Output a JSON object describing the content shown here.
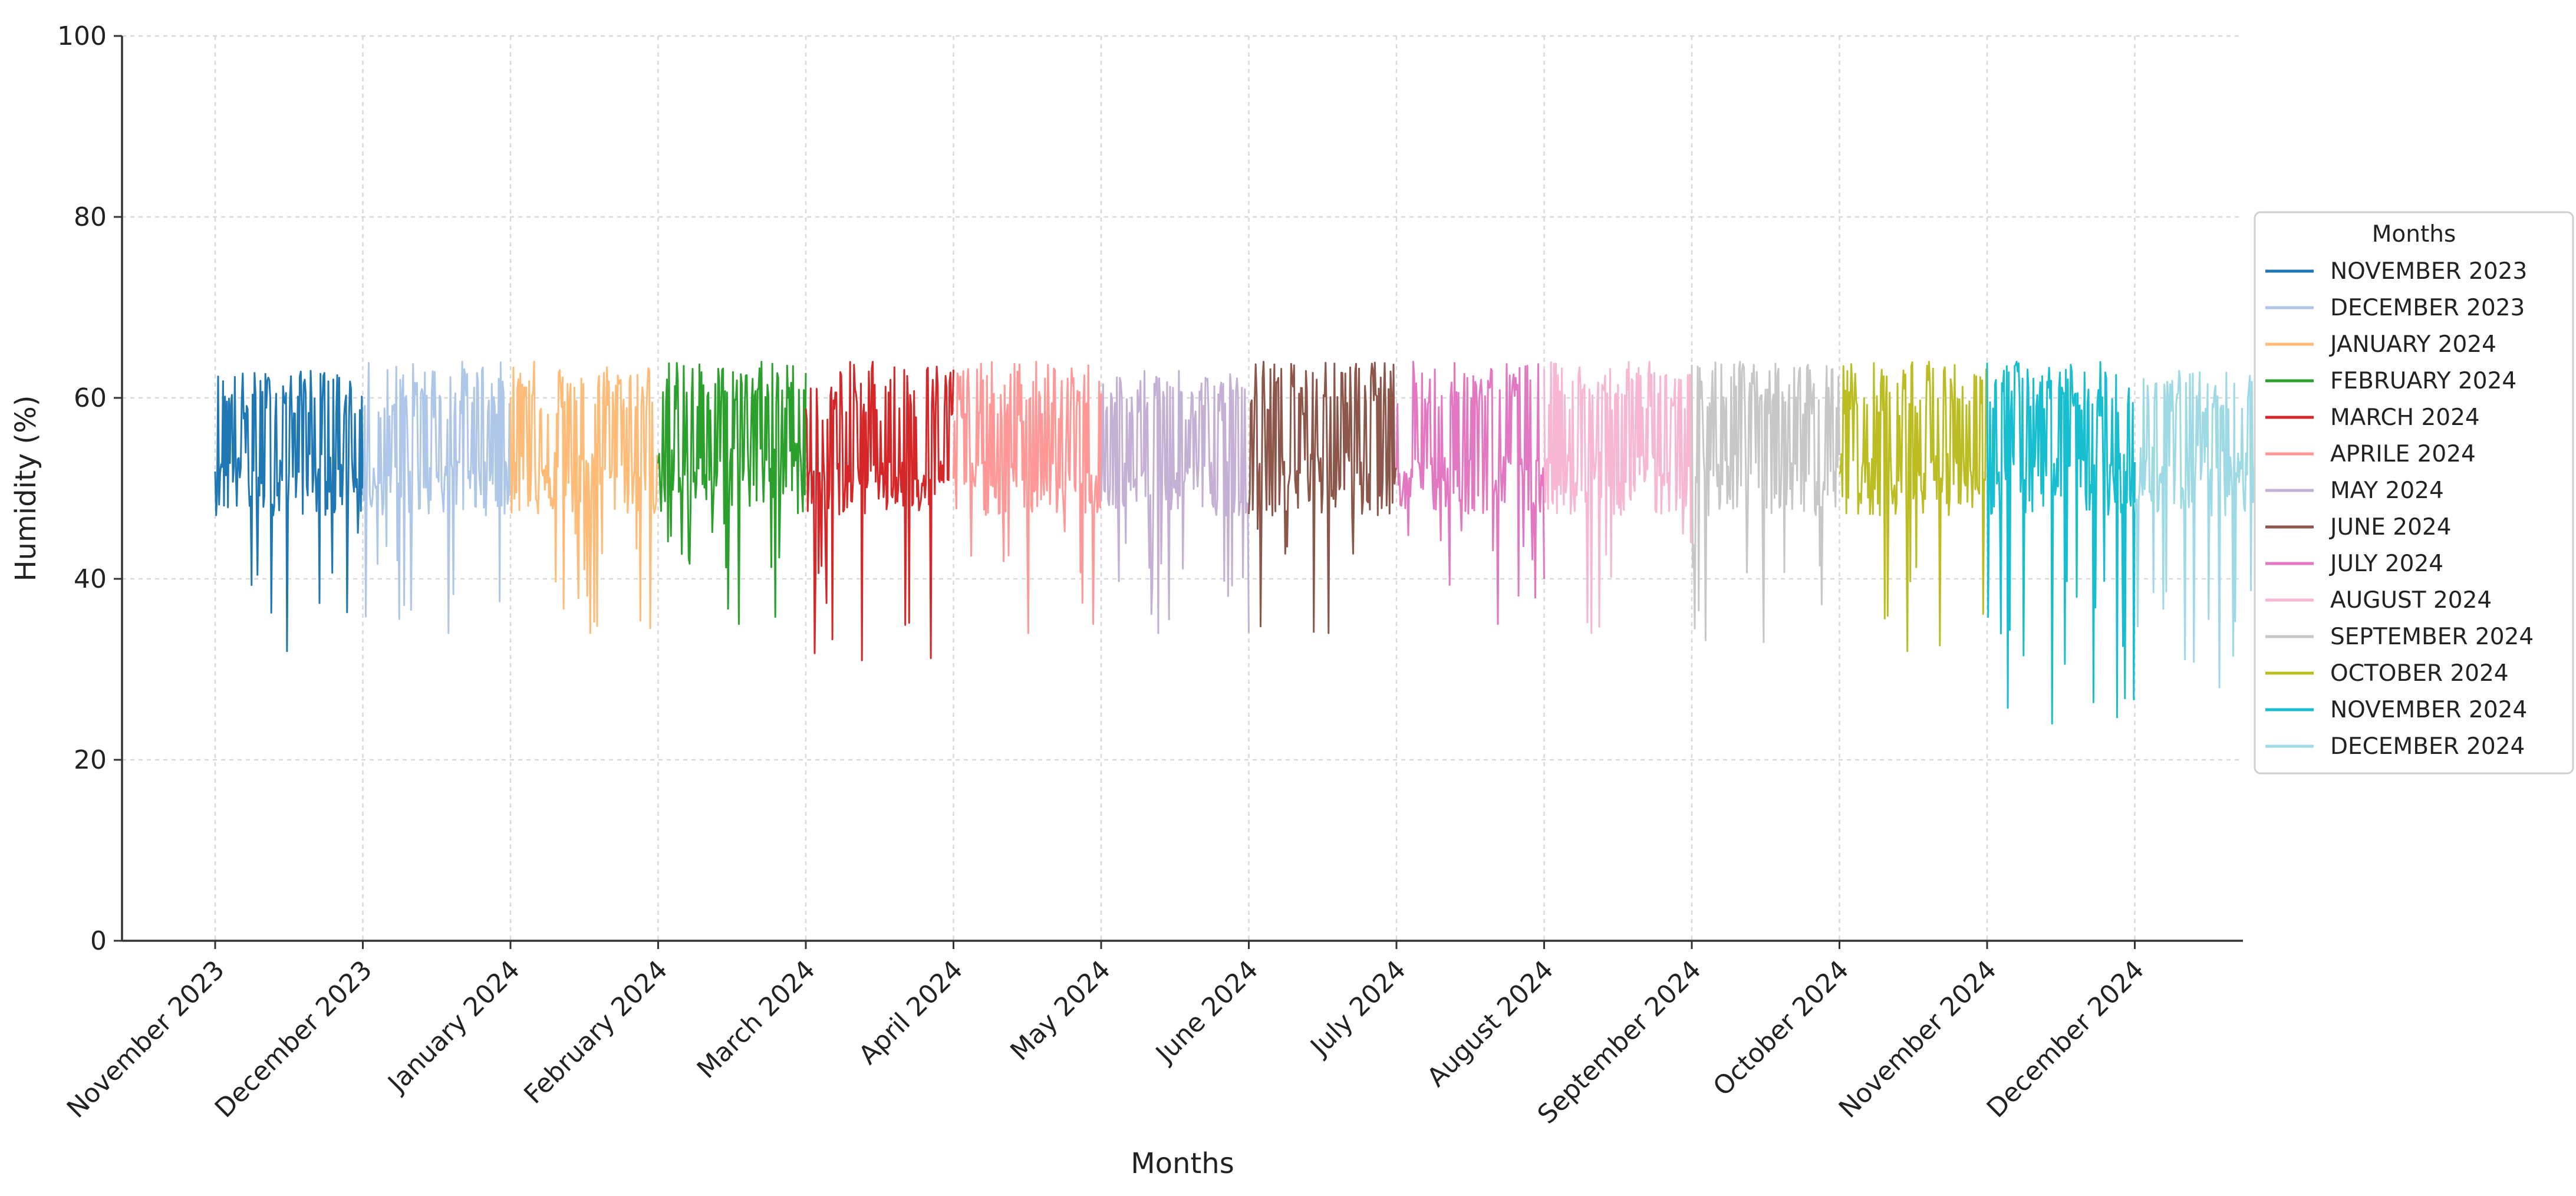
{
  "chart_data": {
    "type": "line",
    "title": "",
    "xlabel": "Months",
    "ylabel": "Humidity (%)",
    "ylim": [
      0,
      100
    ],
    "yticks": [
      0,
      20,
      40,
      60,
      80,
      100
    ],
    "grid": true,
    "x_tick_labels": [
      "November 2023",
      "December 2023",
      "January 2024",
      "February 2024",
      "March 2024",
      "April 2024",
      "May 2024",
      "June 2024",
      "July 2024",
      "August 2024",
      "September 2024",
      "October 2024",
      "November 2024",
      "December 2024"
    ],
    "legend": {
      "title": "Months",
      "placement": "right"
    },
    "series": [
      {
        "name": "NOVEMBER 2023",
        "color": "#1f77b4",
        "range": [
          32,
          63
        ],
        "mean": 54
      },
      {
        "name": "DECEMBER 2023",
        "color": "#aec7e8",
        "range": [
          34,
          64
        ],
        "mean": 53
      },
      {
        "name": "JANUARY 2024",
        "color": "#ffbb78",
        "range": [
          34,
          64
        ],
        "mean": 54
      },
      {
        "name": "FEBRUARY 2024",
        "color": "#2ca02c",
        "range": [
          35,
          64
        ],
        "mean": 55
      },
      {
        "name": "MARCH 2024",
        "color": "#d62728",
        "range": [
          31,
          64
        ],
        "mean": 53
      },
      {
        "name": "APRILE 2024",
        "color": "#ff9896",
        "range": [
          34,
          64
        ],
        "mean": 53
      },
      {
        "name": "MAY 2024",
        "color": "#c5b0d5",
        "range": [
          34,
          63
        ],
        "mean": 53
      },
      {
        "name": "JUNE 2024",
        "color": "#8c564b",
        "range": [
          34,
          64
        ],
        "mean": 54
      },
      {
        "name": "JULY 2024",
        "color": "#e377c2",
        "range": [
          35,
          64
        ],
        "mean": 54
      },
      {
        "name": "AUGUST 2024",
        "color": "#f7b6d2",
        "range": [
          34,
          64
        ],
        "mean": 54
      },
      {
        "name": "SEPTEMBER 2024",
        "color": "#c7c7c7",
        "range": [
          33,
          64
        ],
        "mean": 54
      },
      {
        "name": "OCTOBER 2024",
        "color": "#bcbd22",
        "range": [
          32,
          64
        ],
        "mean": 54
      },
      {
        "name": "NOVEMBER 2024",
        "color": "#17becf",
        "range": [
          24,
          64
        ],
        "mean": 54
      },
      {
        "name": "DECEMBER 2024",
        "color": "#9edae5",
        "range": [
          28,
          63
        ],
        "mean": 55
      }
    ]
  }
}
